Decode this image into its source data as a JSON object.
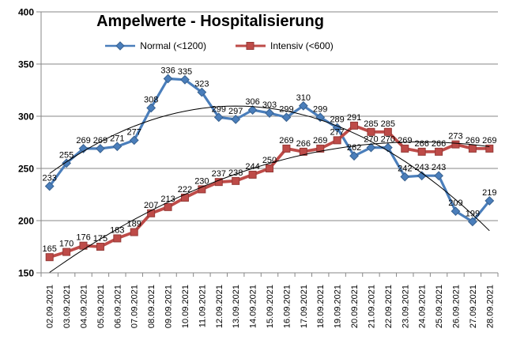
{
  "chart_data": {
    "type": "line",
    "title": "Ampelwerte - Hospitalisierung",
    "categories": [
      "02.09.2021",
      "03.09.2021",
      "04.09.2021",
      "05.09.2021",
      "06.09.2021",
      "07.09.2021",
      "08.09.2021",
      "09.09.2021",
      "10.09.2021",
      "11.09.2021",
      "12.09.2021",
      "13.09.2021",
      "14.09.2021",
      "15.09.2021",
      "16.09.2021",
      "17.09.2021",
      "18.09.2021",
      "19.09.2021",
      "20.09.2021",
      "21.09.2021",
      "22.09.2021",
      "23.09.2021",
      "24.09.2021",
      "25.09.2021",
      "26.09.2021",
      "27.09.2021",
      "28.09.2021"
    ],
    "series": [
      {
        "name": "Normal (<1200)",
        "marker": "diamond",
        "color": "#4A7EBB",
        "marker_edge": "#38618F",
        "values": [
          233,
          255,
          269,
          269,
          271,
          277,
          308,
          336,
          335,
          323,
          299,
          297,
          306,
          303,
          299,
          310,
          299,
          289,
          262,
          270,
          270,
          242,
          243,
          243,
          209,
          199,
          219
        ]
      },
      {
        "name": "Intensiv (<600)",
        "marker": "square",
        "color": "#BE4B48",
        "marker_edge": "#953A37",
        "values": [
          165,
          170,
          176,
          175,
          183,
          189,
          207,
          213,
          222,
          230,
          237,
          238,
          244,
          250,
          269,
          266,
          269,
          277,
          291,
          285,
          285,
          269,
          266,
          266,
          273,
          269,
          269
        ]
      }
    ],
    "trendlines": [
      {
        "series": 0,
        "kind": "polynomial-2",
        "color": "#000000"
      },
      {
        "series": 1,
        "kind": "polynomial-2",
        "color": "#000000"
      }
    ],
    "ylim": [
      150,
      400
    ],
    "yticks": [
      150,
      200,
      250,
      300,
      350,
      400
    ],
    "grid": "horizontal",
    "legend_position": "top",
    "data_labels": "above"
  },
  "colors": {
    "grid": "#878787",
    "axis": "#878787",
    "background": "#ffffff",
    "label": "#000000"
  }
}
